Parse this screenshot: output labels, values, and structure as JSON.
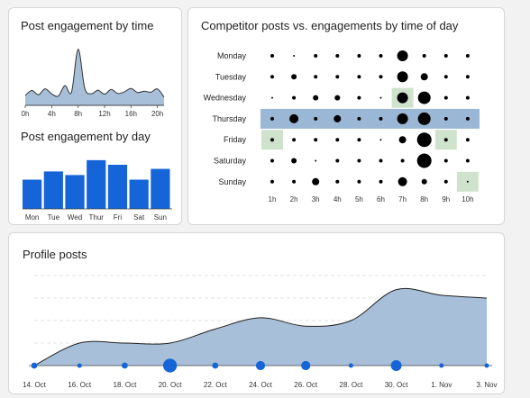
{
  "chart_data": [
    {
      "type": "area",
      "title": "Post engagement by time",
      "x": [
        "0h",
        "1h",
        "2h",
        "3h",
        "4h",
        "5h",
        "6h",
        "7h",
        "8h",
        "9h",
        "10h",
        "11h",
        "12h",
        "13h",
        "14h",
        "15h",
        "16h",
        "17h",
        "18h",
        "19h",
        "20h",
        "21h"
      ],
      "values": [
        3,
        4.5,
        3.2,
        5,
        3.5,
        2.8,
        6,
        4,
        17,
        5.2,
        3.5,
        4.6,
        3.4,
        4.8,
        3.6,
        4.1,
        5.1,
        3.9,
        4.3,
        4.0,
        5.0,
        2.5
      ],
      "xticks": [
        "0h",
        "4h",
        "8h",
        "12h",
        "16h",
        "20h"
      ],
      "color": "#a7bfd8",
      "line_color": "#333333"
    },
    {
      "type": "bar",
      "title": "Post engagement by day",
      "categories": [
        "Mon",
        "Tue",
        "Wed",
        "Thur",
        "Fri",
        "Sat",
        "Sun"
      ],
      "values": [
        57,
        73,
        66,
        95,
        86,
        57,
        78
      ],
      "ylim": [
        0,
        100
      ],
      "color": "#1565d8"
    },
    {
      "type": "scatter",
      "title": "Competitor posts vs. engagements by time of day",
      "y_categories": [
        "Monday",
        "Tuesday",
        "Wednesday",
        "Thursday",
        "Friday",
        "Saturday",
        "Sunday"
      ],
      "x_categories": [
        "1h",
        "2h",
        "3h",
        "4h",
        "5h",
        "6h",
        "7h",
        "8h",
        "9h",
        "10h"
      ],
      "sizes": [
        [
          2,
          1,
          2,
          2,
          2,
          2,
          6,
          2,
          2,
          2
        ],
        [
          2,
          3,
          2,
          2,
          2,
          2,
          6,
          4,
          2,
          2
        ],
        [
          1,
          2,
          3,
          3,
          2,
          1,
          6,
          7,
          2,
          2
        ],
        [
          2,
          5,
          2,
          4,
          2,
          2,
          6,
          7,
          2,
          2
        ],
        [
          2,
          2,
          2,
          2,
          2,
          1,
          4,
          8,
          2,
          2
        ],
        [
          2,
          3,
          1,
          2,
          2,
          2,
          2,
          8,
          2,
          2
        ],
        [
          2,
          2,
          4,
          2,
          2,
          2,
          5,
          3,
          2,
          1
        ]
      ],
      "highlight_row": "Thursday",
      "highlight_row_color": "#9ab8d6",
      "highlight_cells": [
        {
          "row": "Wednesday",
          "col": "7h"
        },
        {
          "row": "Friday",
          "col": "1h"
        },
        {
          "row": "Friday",
          "col": "9h"
        },
        {
          "row": "Sunday",
          "col": "10h"
        }
      ],
      "highlight_cell_color": "#cfe3cc",
      "dot_color": "#000000"
    },
    {
      "type": "area",
      "title": "Profile posts",
      "x_labels": [
        "14. Oct",
        "16. Oct",
        "18. Oct",
        "20. Oct",
        "22. Oct",
        "24. Oct",
        "26. Oct",
        "28. Oct",
        "30. Oct",
        "1. Nov",
        "3. Nov"
      ],
      "values": [
        0,
        8,
        8,
        8,
        13,
        17,
        14,
        16,
        27,
        25,
        24
      ],
      "marker_sizes": [
        2,
        1.5,
        2,
        4.5,
        2,
        3,
        3,
        1.5,
        3.5,
        1.5,
        1.5
      ],
      "ylim": [
        0,
        32
      ],
      "grid": true,
      "color": "#a7bfd8",
      "marker_color": "#1565d8"
    }
  ]
}
